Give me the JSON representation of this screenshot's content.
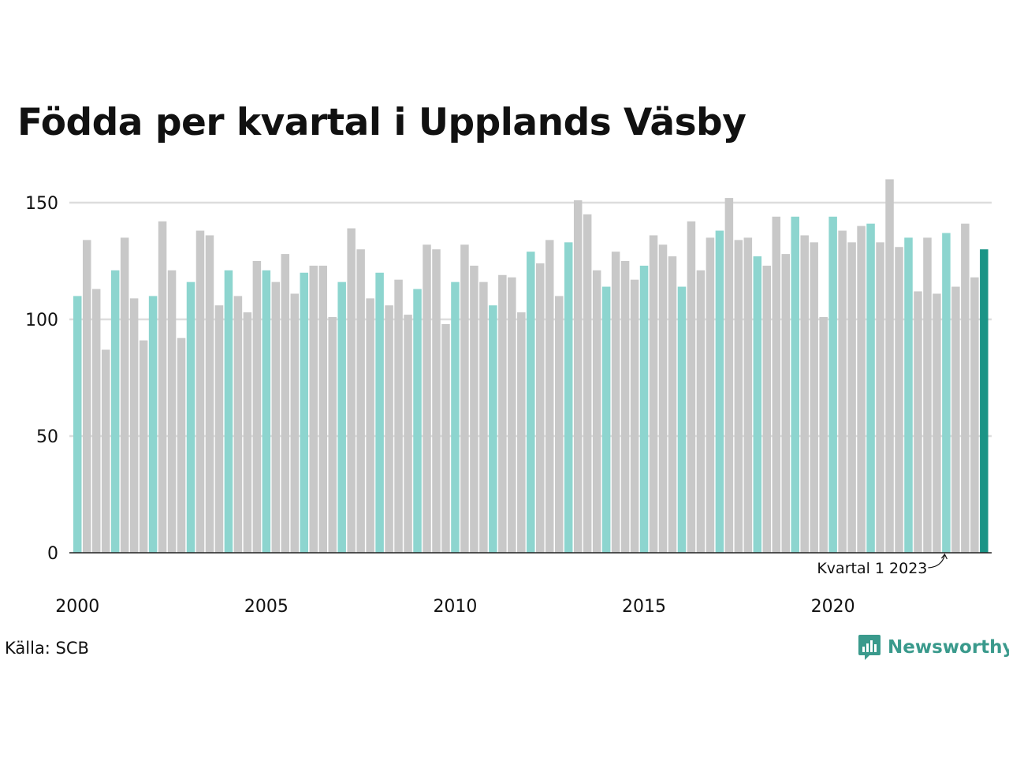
{
  "title": "Födda per kvartal i Upplands Väsby",
  "source": "Källa: SCB",
  "brand": "Newsworthy",
  "annotation": "Kvartal 1 2023",
  "colors": {
    "q1": "#8dd5cf",
    "other": "#c8c8c8",
    "latest": "#1a9486",
    "grid": "#dddddd",
    "axis": "#222222",
    "brand": "#3a9a8c"
  },
  "chart_data": {
    "type": "bar",
    "ylim": [
      0,
      160
    ],
    "yticks": [
      0,
      50,
      100,
      150
    ],
    "xticks": [
      "2000",
      "2005",
      "2010",
      "2015",
      "2020"
    ],
    "grid": true,
    "start_year": 2000,
    "start_quarter": 1,
    "values": [
      110,
      134,
      113,
      87,
      121,
      135,
      109,
      91,
      110,
      142,
      121,
      92,
      116,
      138,
      136,
      106,
      121,
      110,
      103,
      125,
      121,
      116,
      128,
      111,
      120,
      123,
      123,
      101,
      116,
      139,
      130,
      109,
      120,
      106,
      117,
      102,
      113,
      132,
      130,
      98,
      116,
      132,
      123,
      116,
      106,
      119,
      118,
      103,
      129,
      124,
      134,
      110,
      133,
      151,
      145,
      121,
      114,
      129,
      125,
      117,
      123,
      136,
      132,
      127,
      114,
      142,
      121,
      135,
      138,
      152,
      134,
      135,
      127,
      123,
      144,
      128,
      144,
      136,
      133,
      101,
      144,
      138,
      133,
      140,
      141,
      133,
      160,
      131,
      135,
      112,
      135,
      111,
      137,
      114,
      141,
      118,
      130
    ]
  }
}
